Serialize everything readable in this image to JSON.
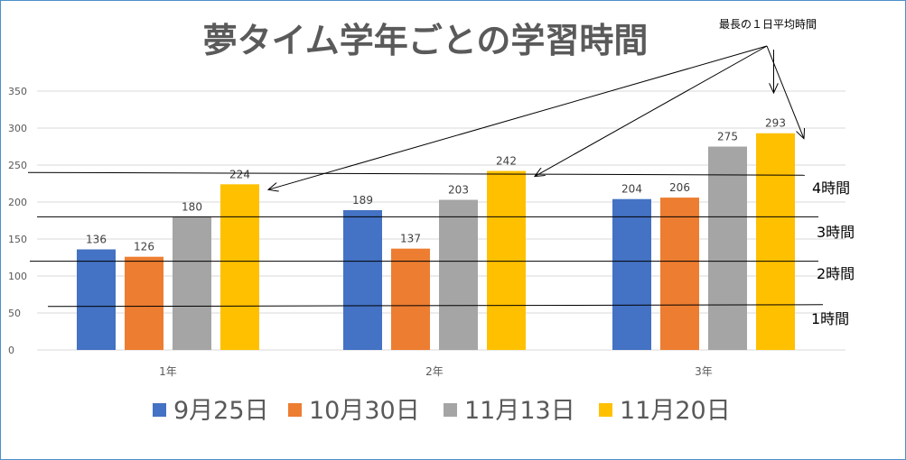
{
  "chart_data": {
    "type": "bar",
    "title": "夢タイム学年ごとの学習時間",
    "categories": [
      "1年",
      "2年",
      "3年"
    ],
    "series": [
      {
        "name": "9月25日",
        "color": "#4472c4",
        "values": [
          136,
          189,
          204
        ]
      },
      {
        "name": "10月30日",
        "color": "#ed7d31",
        "values": [
          126,
          137,
          206
        ]
      },
      {
        "name": "11月13日",
        "color": "#a5a5a5",
        "values": [
          180,
          203,
          275
        ]
      },
      {
        "name": "11月20日",
        "color": "#ffc000",
        "values": [
          224,
          242,
          293
        ]
      }
    ],
    "ylim": [
      0,
      350
    ],
    "yticks": [
      0,
      50,
      100,
      150,
      200,
      250,
      300,
      350
    ],
    "grid": true,
    "legend": "bottom",
    "annotations": {
      "hour_lines": [
        {
          "label": "1時間",
          "value": 60
        },
        {
          "label": "2時間",
          "value": 120
        },
        {
          "label": "3時間",
          "value": 180
        },
        {
          "label": "4時間",
          "value": 240
        }
      ],
      "note": "最長の１日平均時間"
    }
  }
}
